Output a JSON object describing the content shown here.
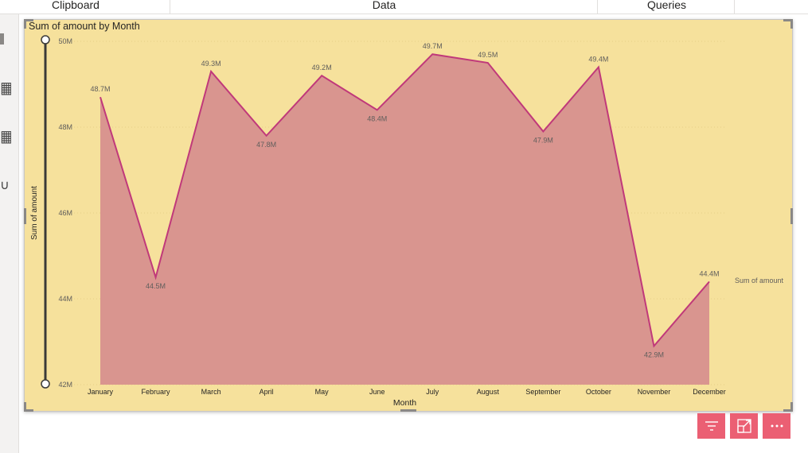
{
  "ribbon": {
    "groups": [
      "Clipboard",
      "Data",
      "Queries"
    ]
  },
  "visual": {
    "title": "Sum of amount by Month"
  },
  "chart_data": {
    "type": "area",
    "title": "Sum of amount by Month",
    "xlabel": "Month",
    "ylabel": "Sum of amount",
    "categories": [
      "January",
      "February",
      "March",
      "April",
      "May",
      "June",
      "July",
      "August",
      "September",
      "October",
      "November",
      "December"
    ],
    "series": [
      {
        "name": "Sum of amount",
        "values": [
          48.7,
          44.5,
          49.3,
          47.8,
          49.2,
          48.4,
          49.7,
          49.5,
          47.9,
          49.4,
          42.9,
          44.4
        ],
        "labels": [
          "48.7M",
          "44.5M",
          "49.3M",
          "47.8M",
          "49.2M",
          "48.4M",
          "49.7M",
          "49.5M",
          "47.9M",
          "49.4M",
          "42.9M",
          "44.4M"
        ]
      }
    ],
    "ylim": [
      42,
      50
    ],
    "yticks": [
      42,
      44,
      46,
      48,
      50
    ],
    "ytick_labels": [
      "42M",
      "44M",
      "46M",
      "48M",
      "50M"
    ],
    "legend": "right",
    "colors": {
      "line": "#c0397a",
      "fill": "#d9958f",
      "background": "#f6e19c",
      "text": "#605e5c"
    }
  },
  "action_buttons": {
    "filter_icon": "filter-icon",
    "focus_icon": "focus-mode-icon",
    "more_icon": "more-options-icon"
  }
}
